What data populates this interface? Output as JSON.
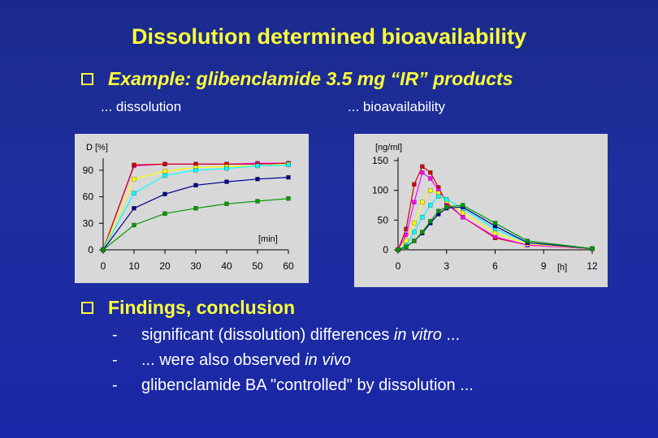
{
  "title": "Dissolution determined bioavailability",
  "bullet1": "Example: glibenclamide 3.5 mg “IR” products",
  "left_caption": "... dissolution",
  "right_caption": "... bioavailability",
  "bullet2": "Findings, conclusion",
  "findings": [
    {
      "dash": "-",
      "parts": [
        {
          "t": "significant (dissolution) differences "
        },
        {
          "t": "in vitro",
          "i": true
        },
        {
          "t": " ..."
        }
      ]
    },
    {
      "dash": "-",
      "parts": [
        {
          "t": "... were also observed "
        },
        {
          "t": "in vivo",
          "i": true
        }
      ]
    },
    {
      "dash": "-",
      "parts": [
        {
          "t": "glibenclamide BA \"controlled\" by dissolution ..."
        }
      ]
    }
  ],
  "colors": {
    "title": "#ffff3a",
    "series": [
      "#ff00ff",
      "#cc0000",
      "#ffff00",
      "#00ffff",
      "#00008b",
      "#009900"
    ]
  },
  "chart_data": [
    {
      "type": "line",
      "ylabel": "D [%]",
      "xlabel": "[min]",
      "xlim": [
        0,
        60
      ],
      "ylim": [
        0,
        100
      ],
      "x_ticks": [
        "0",
        "10",
        "20",
        "30",
        "40",
        "50",
        "60"
      ],
      "y_ticks": [
        "0",
        "30",
        "60",
        "90"
      ],
      "x": [
        0,
        10,
        20,
        30,
        40,
        50,
        60
      ],
      "series": [
        {
          "values": [
            0,
            95,
            97,
            97,
            97,
            98,
            98
          ],
          "color": "#ff00ff"
        },
        {
          "values": [
            0,
            96,
            97,
            97,
            97,
            97,
            98
          ],
          "color": "#cc0000"
        },
        {
          "values": [
            0,
            80,
            89,
            93,
            94,
            95,
            97
          ],
          "color": "#ffff00"
        },
        {
          "values": [
            0,
            64,
            84,
            90,
            92,
            95,
            96
          ],
          "color": "#00ffff"
        },
        {
          "values": [
            0,
            47,
            63,
            73,
            77,
            80,
            82
          ],
          "color": "#00008b"
        },
        {
          "values": [
            0,
            28,
            41,
            47,
            52,
            55,
            58
          ],
          "color": "#009900"
        }
      ]
    },
    {
      "type": "line",
      "ylabel": "[ng/ml]",
      "xlabel": "[h]",
      "xlim": [
        0,
        12
      ],
      "ylim": [
        0,
        150
      ],
      "x_ticks": [
        "0",
        "3",
        "6",
        "9",
        "12"
      ],
      "y_ticks": [
        "0",
        "50",
        "100",
        "150"
      ],
      "x": [
        0,
        0.5,
        1,
        1.5,
        2,
        2.5,
        3,
        4,
        6,
        8,
        12
      ],
      "series": [
        {
          "values": [
            0,
            35,
            110,
            140,
            130,
            105,
            78,
            55,
            20,
            8,
            2
          ],
          "color": "#cc0000"
        },
        {
          "values": [
            0,
            25,
            80,
            130,
            120,
            100,
            80,
            55,
            22,
            8,
            2
          ],
          "color": "#ff00ff"
        },
        {
          "values": [
            0,
            15,
            45,
            80,
            100,
            95,
            82,
            62,
            28,
            10,
            2
          ],
          "color": "#ffff00"
        },
        {
          "values": [
            0,
            8,
            30,
            55,
            75,
            90,
            85,
            70,
            35,
            12,
            2
          ],
          "color": "#00ffff"
        },
        {
          "values": [
            0,
            5,
            15,
            28,
            45,
            60,
            70,
            72,
            40,
            12,
            2
          ],
          "color": "#00008b"
        },
        {
          "values": [
            0,
            5,
            15,
            30,
            48,
            65,
            72,
            75,
            45,
            15,
            2
          ],
          "color": "#009900"
        }
      ]
    }
  ]
}
